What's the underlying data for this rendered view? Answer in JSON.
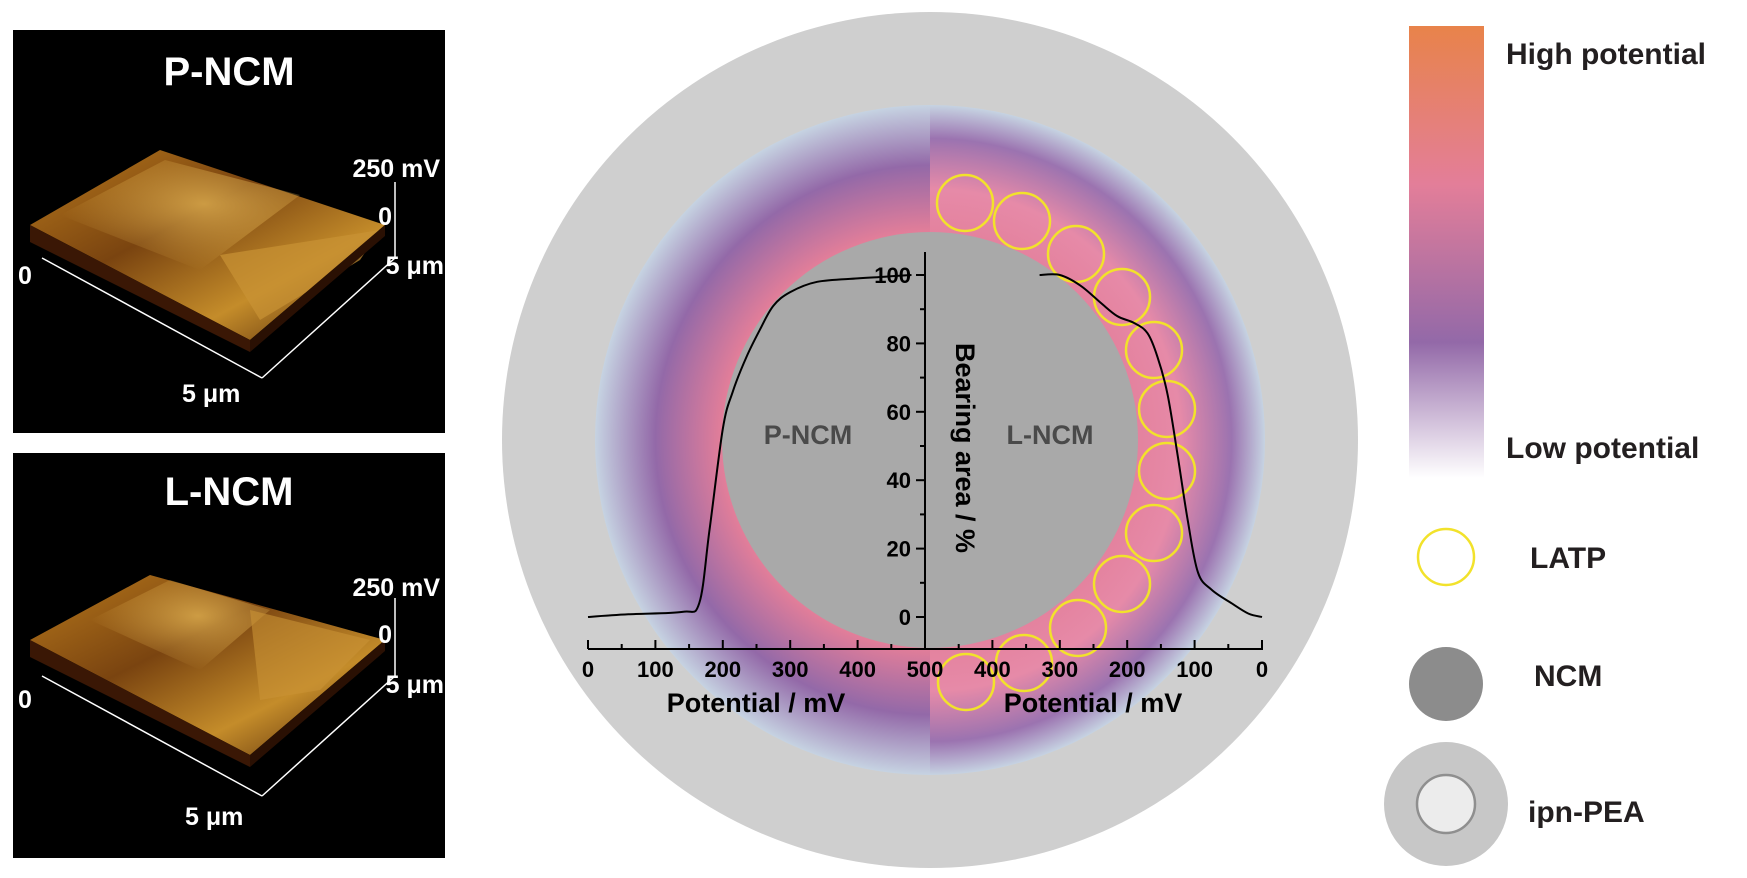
{
  "afm_panels": [
    {
      "title": "P-NCM",
      "z_label": "250 mV",
      "z_zero": "0",
      "origin": "0",
      "x_label": "5 μm",
      "y_label": "5 μm"
    },
    {
      "title": "L-NCM",
      "z_label": "250 mV",
      "z_zero": "0",
      "origin": "0",
      "x_label": "5 μm",
      "y_label": "5 μm"
    }
  ],
  "diagram": {
    "left_label": "P-NCM",
    "right_label": "L-NCM",
    "y_axis_label": "Bearing area / %",
    "x_axis_label_left": "Potential / mV",
    "x_axis_label_right": "Potential / mV",
    "y_ticks": [
      "0",
      "20",
      "40",
      "60",
      "80",
      "100"
    ],
    "x_ticks_left": [
      "0",
      "100",
      "200",
      "300",
      "400",
      "500"
    ],
    "x_ticks_right": [
      "500",
      "400",
      "300",
      "200",
      "100",
      "0"
    ]
  },
  "legend": {
    "gradient_high": "High potential",
    "gradient_low": "Low potential",
    "latp": "LATP",
    "ncm": "NCM",
    "ipn_pea": "ipn-PEA"
  },
  "colors": {
    "high_potential": "#e8834a",
    "mid_potential": "#e37e99",
    "low_potential_purple": "#9369a8",
    "low_potential": "#ffffff",
    "latp_ring": "#f2e22b",
    "ncm_core": "#a9a9a9",
    "ipn_pea_shell": "#cfcfcf"
  },
  "chart_data": [
    {
      "type": "line",
      "name": "P-NCM",
      "xlabel": "Potential / mV",
      "ylabel": "Bearing area / %",
      "xlim": [
        0,
        500
      ],
      "ylim": [
        0,
        100
      ],
      "x": [
        0,
        60,
        140,
        165,
        180,
        200,
        215,
        235,
        255,
        275,
        300,
        340,
        400,
        440,
        480
      ],
      "y": [
        0,
        0.8,
        1.5,
        4,
        25,
        55,
        66,
        76,
        84,
        91,
        95,
        98,
        99,
        99.5,
        100
      ]
    },
    {
      "type": "line",
      "name": "L-NCM",
      "xlabel": "Potential / mV",
      "ylabel": "Bearing area / %",
      "xlim": [
        500,
        0
      ],
      "ylim": [
        0,
        100
      ],
      "x": [
        330,
        300,
        270,
        240,
        215,
        190,
        170,
        155,
        140,
        125,
        110,
        95,
        75,
        45,
        20,
        0
      ],
      "y": [
        100,
        100,
        97,
        92,
        88,
        86,
        83,
        76,
        65,
        47,
        28,
        13,
        8,
        4,
        1,
        0
      ]
    }
  ]
}
